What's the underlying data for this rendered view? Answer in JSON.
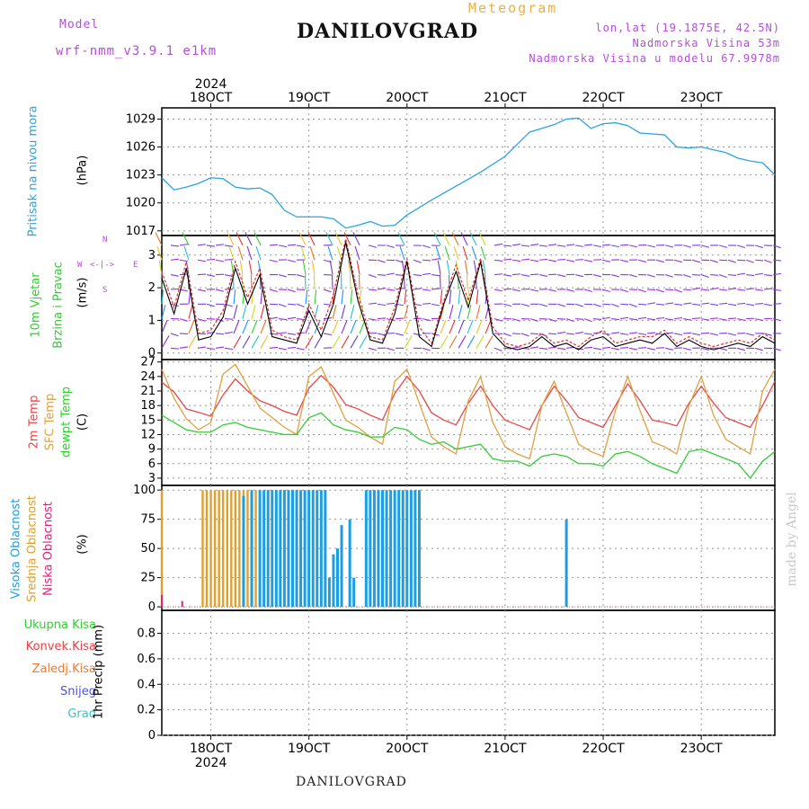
{
  "header": {
    "model_label": "Model",
    "model_name": "wrf-nmm_v3.9.1 e1km",
    "title": "DANILOVGRAD",
    "meteogram": "Meteogram",
    "lonlat": "lon,lat (19.1875E, 42.5N)",
    "elevation": "Nadmorska Visina 53m",
    "model_elevation": "Nadmorska Visina u modelu 67.9978m",
    "footer_title": "DANILOVGRAD",
    "watermark": "made by Angel"
  },
  "colors": {
    "pressure": "#2aa4e0",
    "temp2m": "#e8474b",
    "sfc_temp": "#e0a040",
    "dewpt": "#33cc33",
    "cloud_high": "#1e9ee0",
    "cloud_mid": "#e0a030",
    "cloud_low": "#e0207a",
    "precip_total": "#33cc33",
    "precip_conv": "#e84040",
    "precip_frozen": "#f07a30",
    "snow": "#5050e0",
    "hail": "#30c8c8",
    "wind_line": "#000000",
    "wind_gust": "#e03030",
    "header_purple": "#b34fd6",
    "header_orange": "#e8b04a"
  },
  "panel_labels": {
    "pressure": [
      "Pritisak na nivou mora",
      "(hPa)"
    ],
    "wind": [
      "10m Vjetar",
      "Brzina i Pravac",
      "(m/s)"
    ],
    "wind_compass": "N\n↑\nW <-|-> E\n↓\nS",
    "temp": [
      "2m Temp",
      "SFC Temp",
      "dewpt Temp",
      "(C)"
    ],
    "cloud": [
      "Visoka Oblacnost",
      "Srednja Oblacnost",
      "Niska Oblacnost",
      "(%)"
    ],
    "precip": [
      "Ukupna Kisa",
      "Konvek.Kisa",
      "Zaledj.Kisa",
      "Snijeg",
      "Grad",
      "1hr Precip (mm)"
    ]
  },
  "compass": {
    "n": "N",
    "s": "S",
    "w": "W",
    "e": "E",
    "center": "<-|->"
  },
  "time_axis": {
    "year": "2024",
    "labels": [
      "18OCT",
      "19OCT",
      "20OCT",
      "21OCT",
      "22OCT",
      "23OCT"
    ],
    "start": "2024-10-17T12:00",
    "end": "2024-10-23T18:00"
  },
  "chart_data": [
    {
      "type": "line",
      "name": "pressure",
      "ylabel": "(hPa)",
      "ylim": [
        1016.5,
        1030.2
      ],
      "yticks": [
        1017,
        1020,
        1023,
        1026,
        1029
      ],
      "grid": true,
      "x_hours": [
        0,
        3,
        6,
        9,
        12,
        15,
        18,
        21,
        24,
        27,
        30,
        33,
        36,
        39,
        42,
        45,
        48,
        51,
        54,
        57,
        60,
        66,
        72,
        78,
        84,
        90,
        96,
        99,
        102,
        105,
        108,
        111,
        114,
        117,
        120,
        123,
        126,
        129,
        132,
        135,
        138,
        141,
        144,
        147,
        150
      ],
      "values": [
        1022.7,
        1021.4,
        1021.7,
        1022.1,
        1022.7,
        1022.6,
        1021.7,
        1021.5,
        1021.6,
        1020.9,
        1019.2,
        1018.5,
        1018.5,
        1018.5,
        1018.3,
        1017.3,
        1017.6,
        1018.0,
        1017.5,
        1017.6,
        1018.7,
        1020.3,
        1021.8,
        1023.3,
        1025.0,
        1027.6,
        1028.4,
        1029.0,
        1029.1,
        1028.0,
        1028.5,
        1028.6,
        1028.3,
        1027.5,
        1027.4,
        1027.3,
        1026.0,
        1025.9,
        1026.0,
        1025.7,
        1025.4,
        1024.8,
        1024.5,
        1024.3,
        1023.0
      ]
    },
    {
      "type": "line",
      "name": "wind",
      "ylabel": "(m/s)",
      "ylim": [
        -0.2,
        3.6
      ],
      "yticks": [
        0,
        1,
        2,
        3
      ],
      "grid": true,
      "x_hours": [
        0,
        3,
        6,
        9,
        12,
        15,
        18,
        21,
        24,
        27,
        30,
        33,
        36,
        39,
        42,
        45,
        48,
        51,
        54,
        57,
        60,
        63,
        66,
        69,
        72,
        75,
        78,
        81,
        84,
        87,
        90,
        93,
        96,
        99,
        102,
        105,
        108,
        111,
        114,
        117,
        120,
        123,
        126,
        129,
        132,
        135,
        138,
        141,
        144,
        147,
        150
      ],
      "series": [
        {
          "name": "speed",
          "values": [
            2.3,
            1.2,
            2.6,
            0.4,
            0.5,
            1.1,
            2.6,
            1.5,
            2.4,
            0.5,
            0.4,
            0.3,
            1.3,
            0.5,
            1.5,
            3.4,
            1.6,
            0.4,
            0.3,
            1.2,
            2.8,
            0.5,
            0.2,
            1.5,
            2.5,
            1.4,
            2.8,
            0.6,
            0.2,
            0.1,
            0.2,
            0.5,
            0.2,
            0.3,
            0.1,
            0.4,
            0.5,
            0.2,
            0.3,
            0.4,
            0.3,
            0.6,
            0.2,
            0.4,
            0.2,
            0.1,
            0.2,
            0.3,
            0.2,
            0.5,
            0.3
          ]
        },
        {
          "name": "gust",
          "values": [
            2.5,
            1.4,
            2.8,
            0.6,
            0.7,
            1.3,
            2.8,
            1.7,
            2.6,
            0.7,
            0.5,
            0.4,
            1.5,
            0.7,
            1.8,
            3.5,
            1.8,
            0.5,
            0.4,
            1.4,
            2.9,
            0.8,
            0.3,
            1.6,
            2.7,
            1.6,
            2.9,
            0.8,
            0.3,
            0.2,
            0.3,
            0.6,
            0.3,
            0.4,
            0.2,
            0.5,
            0.7,
            0.3,
            0.4,
            0.5,
            0.5,
            0.7,
            0.3,
            0.5,
            0.3,
            0.2,
            0.3,
            0.4,
            0.3,
            0.6,
            0.4
          ]
        }
      ]
    },
    {
      "type": "line",
      "name": "temperature",
      "ylabel": "(C)",
      "ylim": [
        1.5,
        27.5
      ],
      "yticks": [
        3,
        6,
        9,
        12,
        15,
        18,
        21,
        24,
        27
      ],
      "grid": true,
      "x_hours": [
        0,
        3,
        6,
        9,
        12,
        15,
        18,
        21,
        24,
        27,
        30,
        33,
        36,
        39,
        42,
        45,
        48,
        51,
        54,
        57,
        60,
        63,
        66,
        69,
        72,
        75,
        78,
        81,
        84,
        87,
        90,
        93,
        96,
        99,
        102,
        105,
        108,
        111,
        114,
        117,
        120,
        123,
        126,
        129,
        132,
        135,
        138,
        141,
        144,
        147,
        150
      ],
      "series": [
        {
          "name": "2m Temp",
          "values": [
            22.8,
            20.8,
            17.3,
            16.6,
            15.8,
            20.2,
            23.5,
            21.0,
            19.0,
            18.0,
            16.8,
            16.0,
            21.6,
            24.2,
            21.8,
            18.2,
            17.3,
            16.0,
            15.0,
            20.5,
            24.0,
            21.0,
            16.5,
            15.0,
            14.0,
            18.5,
            22.0,
            18.0,
            15.0,
            14.0,
            13.0,
            18.0,
            22.0,
            19.0,
            15.5,
            14.5,
            13.5,
            18.0,
            22.5,
            19.0,
            15.0,
            14.5,
            13.8,
            18.5,
            22.0,
            18.5,
            15.5,
            14.5,
            13.5,
            18.0,
            23.0
          ]
        },
        {
          "name": "SFC Temp",
          "values": [
            25.5,
            19.5,
            15.3,
            13.0,
            14.5,
            24.5,
            26.5,
            22.0,
            17.5,
            15.5,
            13.5,
            12.0,
            24.0,
            26.0,
            20.5,
            15.0,
            13.5,
            11.5,
            10.0,
            23.0,
            25.5,
            18.5,
            11.5,
            9.5,
            8.0,
            19.0,
            24.0,
            14.5,
            9.5,
            8.0,
            7.0,
            18.0,
            23.0,
            16.5,
            10.0,
            8.5,
            7.5,
            17.0,
            24.0,
            17.0,
            10.5,
            9.5,
            8.0,
            18.0,
            24.0,
            16.0,
            11.0,
            9.5,
            8.0,
            21.0,
            25.5
          ]
        },
        {
          "name": "dewpt Temp",
          "values": [
            16.0,
            14.5,
            13.0,
            12.5,
            12.5,
            14.0,
            14.5,
            13.5,
            13.0,
            12.5,
            12.0,
            12.0,
            15.5,
            16.5,
            14.0,
            13.0,
            12.5,
            11.5,
            11.5,
            13.5,
            13.0,
            11.0,
            10.0,
            10.5,
            9.0,
            9.5,
            10.0,
            7.0,
            6.5,
            6.5,
            5.5,
            7.5,
            8.0,
            7.5,
            6.0,
            6.0,
            5.5,
            8.0,
            8.5,
            7.5,
            6.0,
            5.0,
            4.0,
            8.5,
            9.0,
            8.0,
            7.0,
            6.0,
            3.0,
            6.5,
            8.5
          ]
        }
      ]
    },
    {
      "type": "bar",
      "name": "cloud",
      "ylabel": "(%)",
      "ylim": [
        -3,
        104
      ],
      "yticks": [
        0,
        25,
        50,
        75,
        100
      ],
      "grid": true,
      "series": [
        {
          "name": "Visoka Oblacnost",
          "x_hours": [
            20,
            22,
            24,
            25,
            26,
            27,
            28,
            29,
            30,
            31,
            32,
            33,
            34,
            35,
            36,
            37,
            38,
            39,
            40,
            41,
            42,
            43,
            44,
            45,
            46,
            47,
            48,
            49,
            50,
            51,
            52,
            53,
            54,
            55,
            56,
            57,
            58,
            59,
            60,
            61,
            62,
            63,
            99
          ],
          "values": [
            95,
            100,
            100,
            100,
            100,
            100,
            100,
            100,
            100,
            100,
            100,
            100,
            100,
            100,
            100,
            100,
            100,
            100,
            100,
            25,
            45,
            50,
            70,
            0,
            75,
            25,
            0,
            0,
            100,
            100,
            100,
            100,
            100,
            100,
            100,
            100,
            100,
            100,
            100,
            100,
            100,
            100,
            75
          ]
        },
        {
          "name": "Srednja Oblacnost",
          "x_hours": [
            0,
            10,
            11,
            12,
            13,
            14,
            15,
            16,
            17,
            18,
            19,
            20,
            21,
            22,
            23,
            24,
            25,
            26,
            27,
            28,
            29,
            30,
            31,
            32,
            33,
            34,
            35,
            36,
            53
          ],
          "values": [
            100,
            100,
            100,
            100,
            100,
            100,
            100,
            100,
            100,
            100,
            100,
            100,
            100,
            100,
            100,
            100,
            100,
            100,
            100,
            100,
            100,
            100,
            100,
            100,
            100,
            80,
            75,
            90,
            28
          ]
        },
        {
          "name": "Niska Oblacnost",
          "x_hours": [
            0,
            5
          ],
          "values": [
            10,
            5
          ]
        }
      ]
    },
    {
      "type": "area",
      "name": "precipitation",
      "ylabel": "1hr Precip (mm)",
      "ylim": [
        0,
        0.98
      ],
      "yticks": [
        0,
        0.2,
        0.4,
        0.6,
        0.8
      ],
      "grid": true,
      "series": [
        {
          "name": "Ukupna Kisa",
          "values": []
        },
        {
          "name": "Konvek.Kisa",
          "values": []
        },
        {
          "name": "Zaledj.Kisa",
          "values": []
        },
        {
          "name": "Snijeg",
          "values": []
        },
        {
          "name": "Grad",
          "values": []
        }
      ]
    }
  ]
}
